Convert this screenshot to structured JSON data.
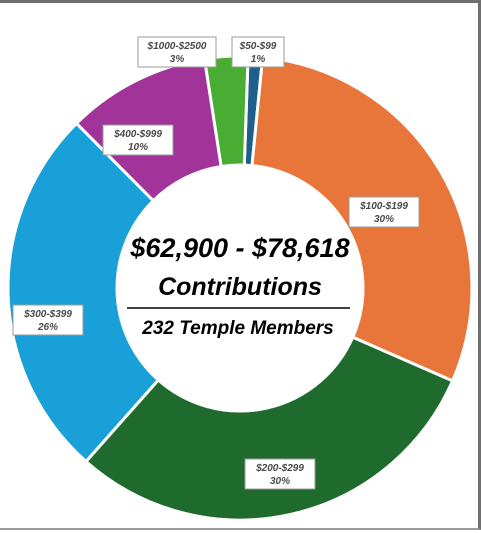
{
  "chart_data": {
    "type": "pie",
    "variant": "doughnut",
    "center": {
      "line1": "$62,900 - $78,618",
      "line2": "Contributions",
      "line3": "232 Temple Members"
    },
    "series": [
      {
        "label": "$50-$99",
        "percent_label": "1%",
        "value": 1,
        "color": "#1f5f8b"
      },
      {
        "label": "$100-$199",
        "percent_label": "30%",
        "value": 30,
        "color": "#e8763a"
      },
      {
        "label": "$200-$299",
        "percent_label": "30%",
        "value": 30,
        "color": "#1f6b2e"
      },
      {
        "label": "$300-$399",
        "percent_label": "26%",
        "value": 26,
        "color": "#1aa0d8"
      },
      {
        "label": "$400-$999",
        "percent_label": "10%",
        "value": 10,
        "color": "#a23399"
      },
      {
        "label": "$1000-$2500",
        "percent_label": "3%",
        "value": 3,
        "color": "#4aad33"
      }
    ]
  }
}
